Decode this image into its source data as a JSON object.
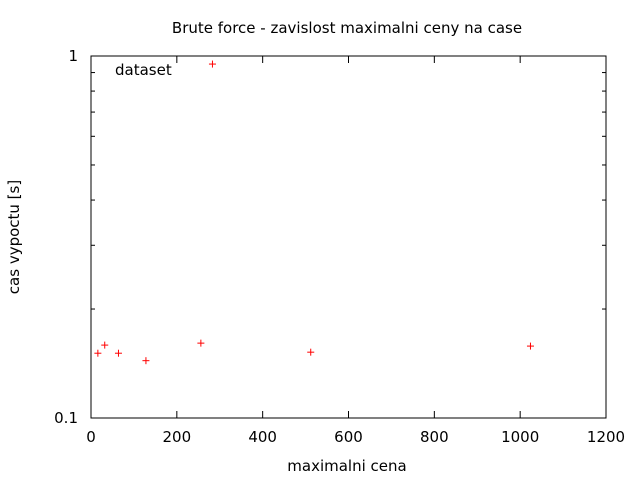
{
  "chart_data": {
    "type": "scatter",
    "title": "Brute force - zavislost maximalni ceny na case",
    "xlabel": "maximalni cena",
    "ylabel": "cas vypoctu [s]",
    "xlim": [
      0,
      1200
    ],
    "ylim": [
      0.1,
      1
    ],
    "y_scale": "log",
    "x_ticks": [
      0,
      200,
      400,
      600,
      800,
      1000,
      1200
    ],
    "x_tick_labels": [
      "0",
      "200",
      "400",
      "600",
      "800",
      "1000",
      "1200"
    ],
    "y_major_ticks": [
      0.1,
      1
    ],
    "y_major_tick_labels": [
      "0.1",
      "1"
    ],
    "y_minor_ticks": [
      0.2,
      0.3,
      0.4,
      0.5,
      0.6,
      0.7,
      0.8,
      0.9
    ],
    "grid": false,
    "legend_position": "top-left",
    "series": [
      {
        "name": "dataset",
        "color": "#ff0000",
        "marker": "plus",
        "points": [
          {
            "x": 16,
            "y": 0.151
          },
          {
            "x": 32,
            "y": 0.159
          },
          {
            "x": 64,
            "y": 0.151
          },
          {
            "x": 128,
            "y": 0.144
          },
          {
            "x": 256,
            "y": 0.161
          },
          {
            "x": 283,
            "y": 0.95
          },
          {
            "x": 512,
            "y": 0.152
          },
          {
            "x": 1024,
            "y": 0.158
          }
        ]
      }
    ]
  }
}
